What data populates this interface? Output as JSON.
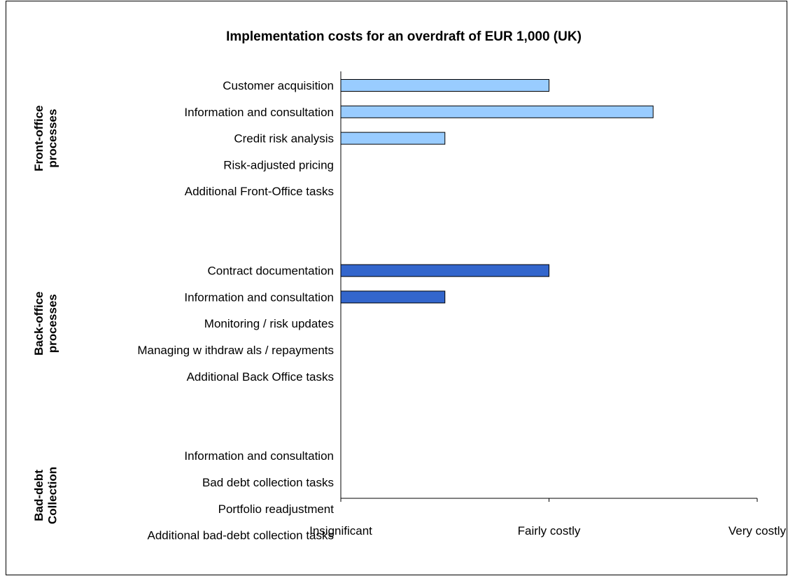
{
  "chart_data": {
    "type": "bar",
    "orientation": "horizontal",
    "title": "Implementation costs for an overdraft of EUR 1,000 (UK)",
    "xlim": [
      0,
      2
    ],
    "x_ticks": [
      0,
      1,
      2
    ],
    "x_tick_labels": [
      "Insignificant",
      "Fairly costly",
      "Very costly"
    ],
    "groups": [
      {
        "label_lines": [
          "Front-office",
          "processes"
        ],
        "color": "#99ccff",
        "categories": [
          "Customer acquisition",
          "Information and consultation",
          "Credit risk analysis",
          "Risk-adjusted pricing",
          "Additional Front-Office tasks"
        ],
        "values": [
          1.0,
          1.5,
          0.5,
          0,
          0
        ]
      },
      {
        "label_lines": [
          "Back-office",
          "processes"
        ],
        "color": "#3366cc",
        "categories": [
          "Contract documentation",
          "Information and consultation",
          "Monitoring / risk updates",
          "Managing w ithdraw als / repayments",
          "Additional Back Office tasks"
        ],
        "values": [
          1.0,
          0.5,
          0,
          0,
          0
        ]
      },
      {
        "label_lines": [
          "Bad-debt",
          "Collection"
        ],
        "color": "#3366cc",
        "categories": [
          "Information and consultation",
          "Bad debt collection tasks",
          "Portfolio readjustment",
          "Additional bad-debt collection tasks"
        ],
        "values": [
          0,
          0,
          0,
          0
        ]
      }
    ],
    "grid": false,
    "legend": "none"
  }
}
